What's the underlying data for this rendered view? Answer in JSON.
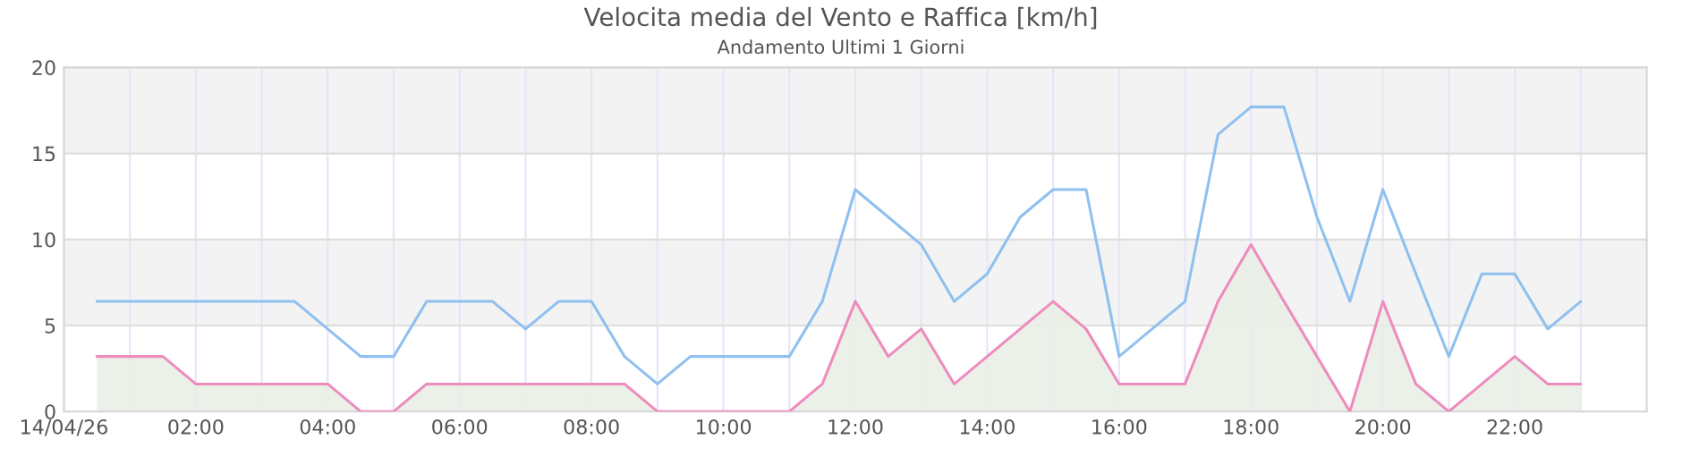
{
  "chart_data": {
    "type": "line",
    "title": "Velocita media del Vento e Raffica [km/h]",
    "subtitle": "Andamento Ultimi 1 Giorni",
    "x": [
      0.5,
      1,
      1.5,
      2,
      2.5,
      3,
      3.5,
      4,
      4.5,
      5,
      5.5,
      6,
      6.5,
      7,
      7.5,
      8,
      8.5,
      9,
      9.5,
      10,
      10.5,
      11,
      11.5,
      12,
      12.5,
      13,
      13.5,
      14,
      14.5,
      15,
      15.5,
      16,
      16.5,
      17,
      17.5,
      18,
      18.5,
      19,
      19.5,
      20,
      20.5,
      21,
      21.5,
      22,
      22.5,
      23
    ],
    "series": [
      {
        "color": "#8fc0ef",
        "values": [
          6.4,
          6.4,
          6.4,
          6.4,
          6.4,
          6.4,
          6.4,
          4.8,
          3.2,
          3.2,
          6.4,
          6.4,
          6.4,
          4.8,
          6.4,
          6.4,
          3.2,
          1.6,
          3.2,
          3.2,
          3.2,
          3.2,
          6.4,
          12.9,
          11.3,
          9.7,
          6.4,
          8,
          11.3,
          12.9,
          12.9,
          3.2,
          4.8,
          6.4,
          16.1,
          17.7,
          17.7,
          11.3,
          6.4,
          12.9,
          8,
          3.2,
          8,
          8,
          4.8,
          6.4
        ]
      },
      {
        "type": "area",
        "color": "#ee8cbd",
        "values": [
          3.2,
          3.2,
          3.2,
          1.6,
          1.6,
          1.6,
          1.6,
          1.6,
          0,
          0,
          1.6,
          1.6,
          1.6,
          1.6,
          1.6,
          1.6,
          1.6,
          0,
          0,
          0,
          0,
          0,
          1.6,
          6.4,
          3.2,
          4.8,
          1.6,
          3.2,
          4.8,
          6.4,
          4.8,
          1.6,
          1.6,
          1.6,
          6.4,
          9.7,
          6.4,
          3.2,
          0,
          6.4,
          1.6,
          0,
          1.6,
          3.2,
          1.6,
          1.6
        ]
      }
    ],
    "xlim": [
      0,
      24
    ],
    "xticks": [
      {
        "value": 0,
        "label": "14/04/26"
      },
      {
        "value": 1,
        "label": null
      },
      {
        "value": 2,
        "label": "02:00"
      },
      {
        "value": 3,
        "label": null
      },
      {
        "value": 4,
        "label": "04:00"
      },
      {
        "value": 5,
        "label": null
      },
      {
        "value": 6,
        "label": "06:00"
      },
      {
        "value": 7,
        "label": null
      },
      {
        "value": 8,
        "label": "08:00"
      },
      {
        "value": 9,
        "label": null
      },
      {
        "value": 10,
        "label": "10:00"
      },
      {
        "value": 11,
        "label": null
      },
      {
        "value": 12,
        "label": "12:00"
      },
      {
        "value": 13,
        "label": null
      },
      {
        "value": 14,
        "label": "14:00"
      },
      {
        "value": 15,
        "label": null
      },
      {
        "value": 16,
        "label": "16:00"
      },
      {
        "value": 17,
        "label": null
      },
      {
        "value": 18,
        "label": "18:00"
      },
      {
        "value": 19,
        "label": null
      },
      {
        "value": 20,
        "label": "20:00"
      },
      {
        "value": 21,
        "label": null
      },
      {
        "value": 22,
        "label": "22:00"
      },
      {
        "value": 23,
        "label": null
      }
    ],
    "ylim": [
      0,
      20
    ],
    "yticks": [
      0,
      5,
      10,
      15,
      20
    ],
    "bands": [
      {
        "axis": "y",
        "from": 5,
        "to": 10,
        "color": "#f3f3f3"
      },
      {
        "axis": "y",
        "from": 15,
        "to": 20,
        "color": "#f3f3f3"
      }
    ],
    "grid": true,
    "legend": false
  }
}
